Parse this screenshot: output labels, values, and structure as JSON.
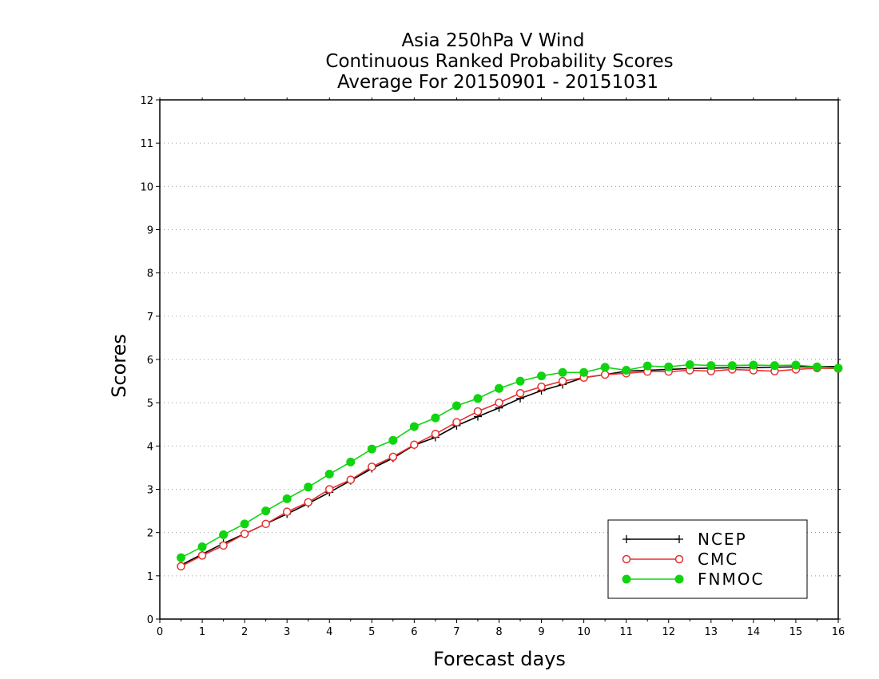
{
  "chart_data": {
    "type": "line",
    "title": [
      "Asia 250hPa V Wind",
      "Continuous Ranked Probability Scores",
      "Average For 20150901 - 20151031"
    ],
    "xlabel": "Forecast days",
    "ylabel": "Scores",
    "xlim": [
      0,
      16
    ],
    "ylim": [
      0,
      12
    ],
    "xticks": [
      "0",
      "1",
      "2",
      "3",
      "4",
      "5",
      "6",
      "7",
      "8",
      "9",
      "10",
      "11",
      "12",
      "13",
      "14",
      "15",
      "16"
    ],
    "yticks": [
      "0",
      "1",
      "2",
      "3",
      "4",
      "5",
      "6",
      "7",
      "8",
      "9",
      "10",
      "11",
      "12"
    ],
    "grid": true,
    "legend_position": "bottom-right",
    "x": [
      0.5,
      1,
      1.5,
      2,
      2.5,
      3,
      3.5,
      4,
      4.5,
      5,
      5.5,
      6,
      6.5,
      7,
      7.5,
      8,
      8.5,
      9,
      9.5,
      10,
      10.5,
      11,
      11.5,
      12,
      12.5,
      13,
      13.5,
      14,
      14.5,
      15,
      15.5,
      16
    ],
    "series": [
      {
        "name": "NCEP",
        "color": "#000000",
        "marker": "plus",
        "values": [
          1.25,
          1.5,
          1.75,
          1.97,
          2.2,
          2.43,
          2.67,
          2.93,
          3.2,
          3.48,
          3.72,
          4.02,
          4.2,
          4.47,
          4.68,
          4.88,
          5.1,
          5.28,
          5.42,
          5.58,
          5.65,
          5.73,
          5.75,
          5.77,
          5.79,
          5.8,
          5.81,
          5.81,
          5.82,
          5.83,
          5.83,
          5.84
        ]
      },
      {
        "name": "CMC",
        "color": "#e83030",
        "marker": "open-circle",
        "values": [
          1.22,
          1.47,
          1.7,
          1.97,
          2.2,
          2.48,
          2.7,
          3.0,
          3.22,
          3.52,
          3.75,
          4.03,
          4.28,
          4.55,
          4.8,
          5.0,
          5.22,
          5.37,
          5.5,
          5.58,
          5.65,
          5.68,
          5.72,
          5.72,
          5.75,
          5.73,
          5.77,
          5.75,
          5.73,
          5.77,
          5.8,
          5.79
        ]
      },
      {
        "name": "FNMOC",
        "color": "#11d411",
        "marker": "filled-circle",
        "values": [
          1.42,
          1.67,
          1.95,
          2.2,
          2.5,
          2.78,
          3.05,
          3.35,
          3.63,
          3.93,
          4.13,
          4.45,
          4.65,
          4.93,
          5.1,
          5.33,
          5.5,
          5.62,
          5.7,
          5.7,
          5.82,
          5.75,
          5.85,
          5.83,
          5.88,
          5.86,
          5.86,
          5.87,
          5.86,
          5.87,
          5.83,
          5.8
        ]
      }
    ]
  }
}
